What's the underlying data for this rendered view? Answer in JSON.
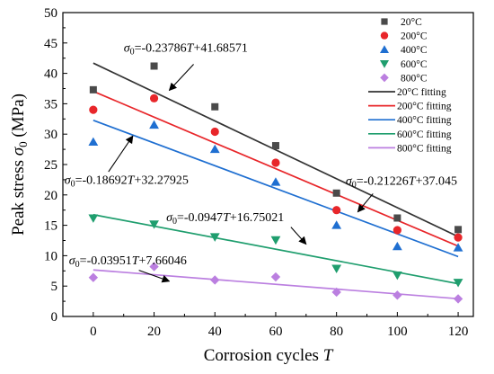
{
  "chart_data": {
    "type": "scatter",
    "xlabel": {
      "main": "Corrosion cycles ",
      "italic": "T"
    },
    "ylabel": {
      "main": "Peak stress ",
      "sym": "σ",
      "sub": "0",
      "unit": " (MPa)"
    },
    "xlim": [
      -10,
      125
    ],
    "ylim": [
      0,
      50
    ],
    "xticks": [
      0,
      20,
      40,
      60,
      80,
      100,
      120
    ],
    "yticks": [
      0,
      5,
      10,
      15,
      20,
      25,
      30,
      35,
      40,
      45,
      50
    ],
    "grid": false,
    "legend_position": "top-right",
    "series": [
      {
        "name": "20°C",
        "marker": "square",
        "color": "#4a4a4a",
        "x": [
          0,
          20,
          40,
          60,
          80,
          100,
          120
        ],
        "y": [
          37.3,
          41.2,
          34.5,
          28.1,
          20.3,
          16.2,
          14.3
        ]
      },
      {
        "name": "200°C",
        "marker": "circle",
        "color": "#e8262a",
        "x": [
          0,
          20,
          40,
          60,
          80,
          100,
          120
        ],
        "y": [
          34.0,
          35.9,
          30.4,
          25.3,
          17.5,
          14.2,
          13.0
        ]
      },
      {
        "name": "400°C",
        "marker": "triangle-up",
        "color": "#1f6fd1",
        "x": [
          0,
          20,
          40,
          60,
          80,
          100,
          120
        ],
        "y": [
          28.7,
          31.5,
          27.5,
          22.1,
          15.0,
          11.5,
          11.3
        ]
      },
      {
        "name": "600°C",
        "marker": "triangle-down",
        "color": "#1f9e6e",
        "x": [
          0,
          20,
          40,
          60,
          80,
          100,
          120
        ],
        "y": [
          16.2,
          15.2,
          13.1,
          12.6,
          7.9,
          6.8,
          5.6
        ]
      },
      {
        "name": "800°C",
        "marker": "diamond",
        "color": "#bb7fe0",
        "x": [
          0,
          20,
          40,
          60,
          80,
          100,
          120
        ],
        "y": [
          6.4,
          8.2,
          6.0,
          6.5,
          4.0,
          3.5,
          2.9
        ]
      }
    ],
    "fits": [
      {
        "name": "20°C fitting",
        "color": "#333333",
        "slope": -0.23786,
        "intercept": 41.68571
      },
      {
        "name": "200°C fitting",
        "color": "#e8262a",
        "slope": -0.21226,
        "intercept": 37.045
      },
      {
        "name": "400°C fitting",
        "color": "#1f6fd1",
        "slope": -0.18692,
        "intercept": 32.27925
      },
      {
        "name": "600°C fitting",
        "color": "#1f9e6e",
        "slope": -0.0947,
        "intercept": 16.75021
      },
      {
        "name": "800°C fitting",
        "color": "#bb7fe0",
        "slope": -0.03951,
        "intercept": 7.66046
      }
    ],
    "annotations": [
      {
        "sym": "σ",
        "sub": "0",
        "eq": "=-0.23786",
        "var": "T",
        "rest": "+41.68571",
        "text_at": [
          10,
          43.6
        ],
        "arrow_from": [
          33,
          41.5
        ],
        "arrow_to": [
          25,
          37.2
        ]
      },
      {
        "sym": "σ",
        "sub": "0",
        "eq": "=-0.21226",
        "var": "T",
        "rest": "+37.045",
        "text_at": [
          83,
          21.7
        ],
        "arrow_from": [
          92,
          20.2
        ],
        "arrow_to": [
          87,
          17.2
        ]
      },
      {
        "sym": "σ",
        "sub": "0",
        "eq": "=-0.18692",
        "var": "T",
        "rest": "+32.27925",
        "text_at": [
          -9.5,
          21.8
        ],
        "arrow_from": [
          5,
          23.8
        ],
        "arrow_to": [
          13,
          29.7
        ]
      },
      {
        "sym": "σ",
        "sub": "0",
        "eq": "=-0.0947",
        "var": "T",
        "rest": "+16.75021",
        "text_at": [
          24,
          15.7
        ],
        "arrow_from": [
          65,
          14.7
        ],
        "arrow_to": [
          70,
          11.9
        ]
      },
      {
        "sym": "σ",
        "sub": "0",
        "eq": "=-0.03951",
        "var": "T",
        "rest": "+7.66046",
        "text_at": [
          -8,
          8.6
        ],
        "arrow_from": [
          15,
          7.6
        ],
        "arrow_to": [
          25,
          5.8
        ]
      }
    ]
  }
}
